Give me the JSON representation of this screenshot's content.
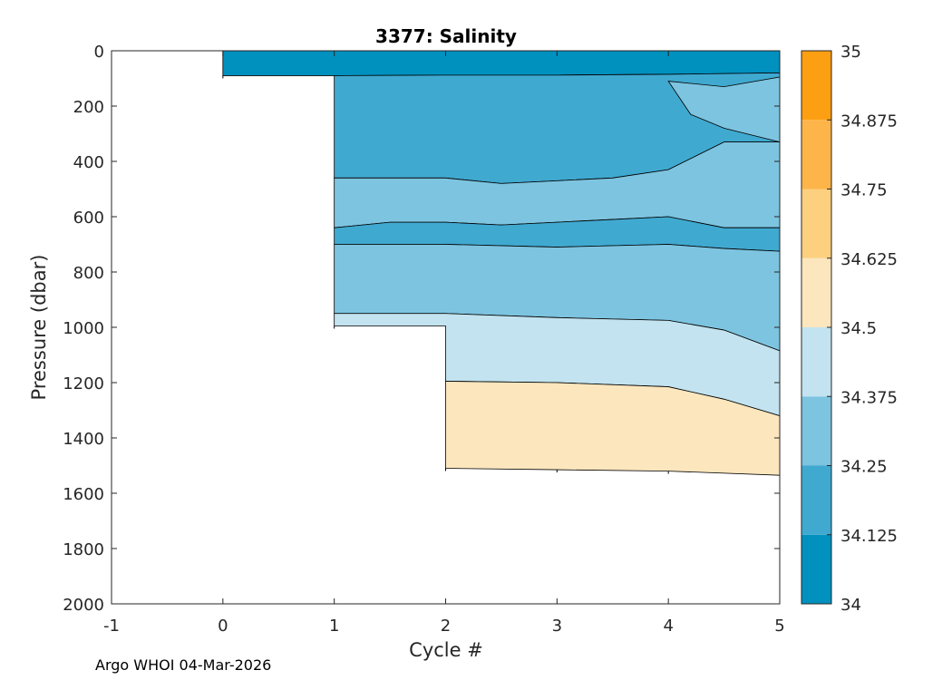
{
  "chart_data": {
    "type": "contour",
    "title": "3377:  Salinity",
    "xlabel": "Cycle #",
    "ylabel": "Pressure (dbar)",
    "xlim": [
      -1,
      5
    ],
    "ylim": [
      0,
      2000
    ],
    "y_reversed": true,
    "x_ticks": [
      -1,
      0,
      1,
      2,
      3,
      4,
      5
    ],
    "y_ticks": [
      0,
      200,
      400,
      600,
      800,
      1000,
      1200,
      1400,
      1600,
      1800,
      2000
    ],
    "colorbar": {
      "range": [
        34,
        35
      ],
      "ticks": [
        "34",
        "34.125",
        "34.25",
        "34.375",
        "34.5",
        "34.625",
        "34.75",
        "34.875",
        "35"
      ],
      "levels": [
        {
          "from": 34.0,
          "to": 34.125,
          "color": "#0091bf"
        },
        {
          "from": 34.125,
          "to": 34.25,
          "color": "#40a9d0"
        },
        {
          "from": 34.25,
          "to": 34.375,
          "color": "#7dc4e0"
        },
        {
          "from": 34.375,
          "to": 34.5,
          "color": "#c2e3ef"
        },
        {
          "from": 34.5,
          "to": 34.625,
          "color": "#fce6be"
        },
        {
          "from": 34.625,
          "to": 34.75,
          "color": "#fcd07f"
        },
        {
          "from": 34.75,
          "to": 34.875,
          "color": "#fdb54a"
        },
        {
          "from": 34.875,
          "to": 35.0,
          "color": "#fd9f13"
        }
      ]
    },
    "profiles": [
      {
        "cycle": 0,
        "max_pressure": 90
      },
      {
        "cycle": 1,
        "max_pressure": 995
      },
      {
        "cycle": 2,
        "max_pressure": 1510
      },
      {
        "cycle": 3,
        "max_pressure": 1515
      },
      {
        "cycle": 4,
        "max_pressure": 1520
      },
      {
        "cycle": 5,
        "max_pressure": 1535
      }
    ],
    "bands": [
      {
        "level": 0,
        "top": [
          [
            0,
            0
          ],
          [
            5,
            0
          ]
        ],
        "bottom": [
          [
            0,
            90
          ],
          [
            1,
            90
          ],
          [
            2,
            90
          ],
          [
            3,
            90
          ],
          [
            4,
            90
          ],
          [
            5,
            90
          ]
        ]
      },
      {
        "level": 0,
        "top": [
          [
            1,
            90
          ],
          [
            5,
            90
          ]
        ],
        "bottom": [
          [
            1,
            90
          ],
          [
            2,
            88
          ],
          [
            3,
            88
          ],
          [
            4,
            85
          ],
          [
            5,
            80
          ]
        ]
      },
      {
        "level": 1,
        "top": [
          [
            1,
            90
          ],
          [
            2,
            88
          ],
          [
            3,
            88
          ],
          [
            4,
            85
          ],
          [
            5,
            80
          ]
        ],
        "bottom": [
          [
            1,
            460
          ],
          [
            2,
            460
          ],
          [
            2.5,
            480
          ],
          [
            3,
            470
          ],
          [
            3.5,
            460
          ],
          [
            4,
            430
          ],
          [
            4.5,
            330
          ],
          [
            5,
            330
          ]
        ]
      },
      {
        "level": 2,
        "top": [
          [
            4,
            110
          ],
          [
            4.5,
            130
          ],
          [
            5,
            95
          ]
        ],
        "bottom": [
          [
            4,
            110
          ],
          [
            4.2,
            230
          ],
          [
            4.5,
            280
          ],
          [
            5,
            330
          ]
        ]
      },
      {
        "level": 2,
        "top": [
          [
            1,
            460
          ],
          [
            2,
            460
          ],
          [
            2.5,
            480
          ],
          [
            3,
            470
          ],
          [
            3.5,
            460
          ],
          [
            4,
            430
          ],
          [
            4.5,
            330
          ],
          [
            5,
            330
          ]
        ],
        "bottom": [
          [
            1,
            640
          ],
          [
            1.5,
            620
          ],
          [
            2,
            620
          ],
          [
            2.5,
            630
          ],
          [
            3,
            620
          ],
          [
            3.5,
            610
          ],
          [
            4,
            600
          ],
          [
            4.5,
            640
          ],
          [
            5,
            640
          ]
        ]
      },
      {
        "level": 1,
        "top": [
          [
            1,
            640
          ],
          [
            1.5,
            620
          ],
          [
            2,
            620
          ],
          [
            2.5,
            630
          ],
          [
            3,
            620
          ],
          [
            3.5,
            610
          ],
          [
            4,
            600
          ],
          [
            4.5,
            640
          ],
          [
            5,
            640
          ]
        ],
        "bottom": [
          [
            1,
            700
          ],
          [
            2,
            700
          ],
          [
            3,
            710
          ],
          [
            4,
            700
          ],
          [
            4.5,
            715
          ],
          [
            5,
            725
          ]
        ]
      },
      {
        "level": 2,
        "top": [
          [
            1,
            700
          ],
          [
            2,
            700
          ],
          [
            3,
            710
          ],
          [
            4,
            700
          ],
          [
            4.5,
            715
          ],
          [
            5,
            725
          ]
        ],
        "bottom": [
          [
            1,
            950
          ],
          [
            2,
            950
          ],
          [
            3,
            965
          ],
          [
            4,
            975
          ],
          [
            4.5,
            1010
          ],
          [
            5,
            1085
          ]
        ]
      },
      {
        "level": 3,
        "top": [
          [
            1,
            950
          ],
          [
            2,
            950
          ],
          [
            3,
            965
          ],
          [
            4,
            975
          ],
          [
            4.5,
            1010
          ],
          [
            5,
            1085
          ]
        ],
        "bottom": [
          [
            1,
            995
          ],
          [
            2,
            995
          ],
          [
            2,
            1195
          ],
          [
            3,
            1200
          ],
          [
            4,
            1215
          ],
          [
            4.5,
            1260
          ],
          [
            5,
            1320
          ]
        ]
      },
      {
        "level": 4,
        "top": [
          [
            2,
            1195
          ],
          [
            3,
            1200
          ],
          [
            4,
            1215
          ],
          [
            4.5,
            1260
          ],
          [
            5,
            1320
          ]
        ],
        "bottom": [
          [
            2,
            1510
          ],
          [
            3,
            1515
          ],
          [
            4,
            1520
          ],
          [
            5,
            1535
          ]
        ]
      }
    ],
    "footer": "Argo WHOI 04-Mar-2026"
  }
}
